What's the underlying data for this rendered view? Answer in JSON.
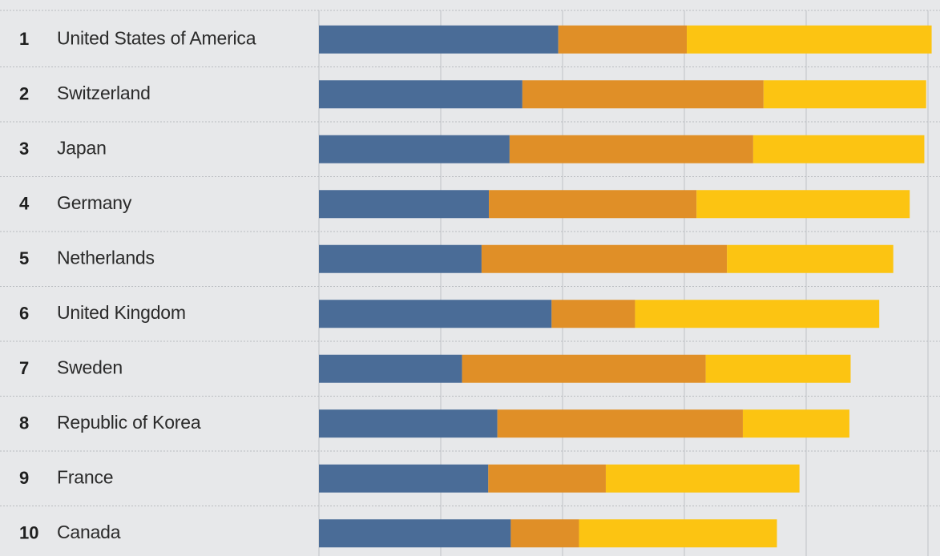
{
  "chart_data": {
    "type": "bar",
    "orientation": "horizontal",
    "stacked": true,
    "title": "",
    "xlabel": "",
    "ylabel": "",
    "xlim": [
      0,
      100
    ],
    "grid": true,
    "legend": "none",
    "categories": [
      "United States of America",
      "Switzerland",
      "Japan",
      "Germany",
      "Netherlands",
      "United Kingdom",
      "Sweden",
      "Republic of Korea",
      "France",
      "Canada"
    ],
    "ranks": [
      "1",
      "2",
      "3",
      "4",
      "5",
      "6",
      "7",
      "8",
      "9",
      "10"
    ],
    "series": [
      {
        "color": "#4a6c97",
        "values": [
          39.3,
          33.4,
          31.3,
          27.9,
          26.7,
          38.2,
          23.5,
          29.3,
          27.8,
          31.5
        ]
      },
      {
        "color": "#e08f27",
        "values": [
          21.1,
          39.6,
          40.0,
          34.1,
          40.3,
          13.7,
          40.0,
          40.3,
          19.3,
          11.2
        ]
      },
      {
        "color": "#fcc412",
        "values": [
          40.2,
          26.7,
          28.1,
          35.0,
          27.3,
          40.1,
          23.8,
          17.5,
          31.8,
          32.5
        ]
      }
    ]
  }
}
